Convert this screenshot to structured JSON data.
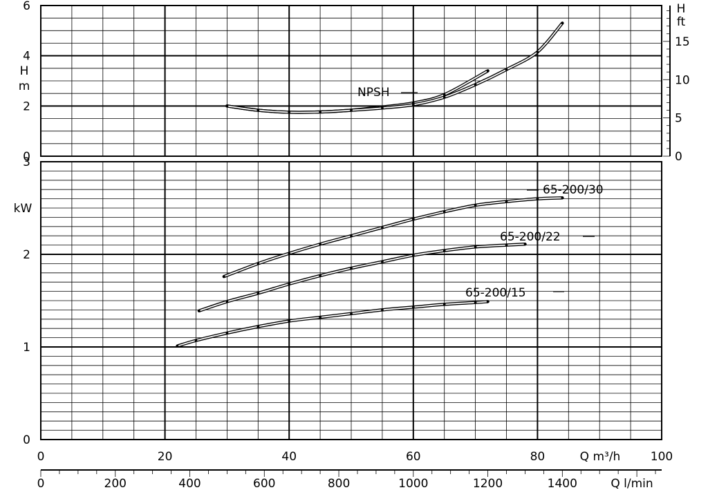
{
  "chart_data": [
    {
      "type": "line",
      "panel": "npsh",
      "ylabel": "H m",
      "ylabel_right": "H ft",
      "ylim": [
        0,
        6
      ],
      "y_ticks": [
        0,
        2,
        4,
        6
      ],
      "ylim_right": [
        0,
        19.7
      ],
      "y_ticks_right": [
        0,
        5,
        10,
        15
      ],
      "xlim": [
        0,
        100
      ],
      "annotation": "NPSH",
      "series": [
        {
          "x": [
            30,
            35,
            40,
            45,
            50,
            55,
            60,
            65,
            72
          ],
          "values": [
            2.0,
            1.83,
            1.75,
            1.76,
            1.83,
            1.96,
            2.12,
            2.45,
            3.4
          ]
        },
        {
          "x": [
            30,
            35,
            40,
            45,
            50,
            55,
            60,
            65,
            70,
            75,
            80,
            84
          ],
          "values": [
            2.0,
            1.83,
            1.75,
            1.76,
            1.83,
            1.92,
            2.05,
            2.35,
            2.85,
            3.45,
            4.15,
            5.3
          ]
        }
      ]
    },
    {
      "type": "line",
      "panel": "power",
      "ylabel": "kW",
      "ylim": [
        0,
        3
      ],
      "y_ticks": [
        0,
        1,
        2,
        3
      ],
      "xlim": [
        0,
        100
      ],
      "xlabel": "Q m³/h",
      "x_ticks": [
        0,
        20,
        40,
        60,
        80,
        100
      ],
      "xlabel_secondary": "Q l/min",
      "x_ticks_secondary": [
        0,
        200,
        400,
        600,
        800,
        1000,
        1200,
        1400
      ],
      "series": [
        {
          "name": "65-200/30",
          "x": [
            29.5,
            35,
            40,
            45,
            50,
            55,
            60,
            65,
            70,
            75,
            80,
            84
          ],
          "values": [
            1.76,
            1.9,
            2.01,
            2.11,
            2.2,
            2.29,
            2.38,
            2.46,
            2.53,
            2.57,
            2.6,
            2.61
          ]
        },
        {
          "name": "65-200/22",
          "x": [
            25.5,
            30,
            35,
            40,
            45,
            50,
            55,
            60,
            65,
            70,
            75,
            78
          ],
          "values": [
            1.39,
            1.49,
            1.58,
            1.68,
            1.77,
            1.85,
            1.92,
            1.99,
            2.04,
            2.08,
            2.1,
            2.11
          ]
        },
        {
          "name": "65-200/15",
          "x": [
            22,
            25,
            30,
            35,
            40,
            45,
            50,
            55,
            60,
            65,
            70,
            72
          ],
          "values": [
            1.01,
            1.07,
            1.15,
            1.22,
            1.28,
            1.32,
            1.36,
            1.4,
            1.43,
            1.46,
            1.48,
            1.49
          ]
        }
      ]
    }
  ],
  "colors": {
    "ink": "#000000",
    "background": "#ffffff"
  }
}
